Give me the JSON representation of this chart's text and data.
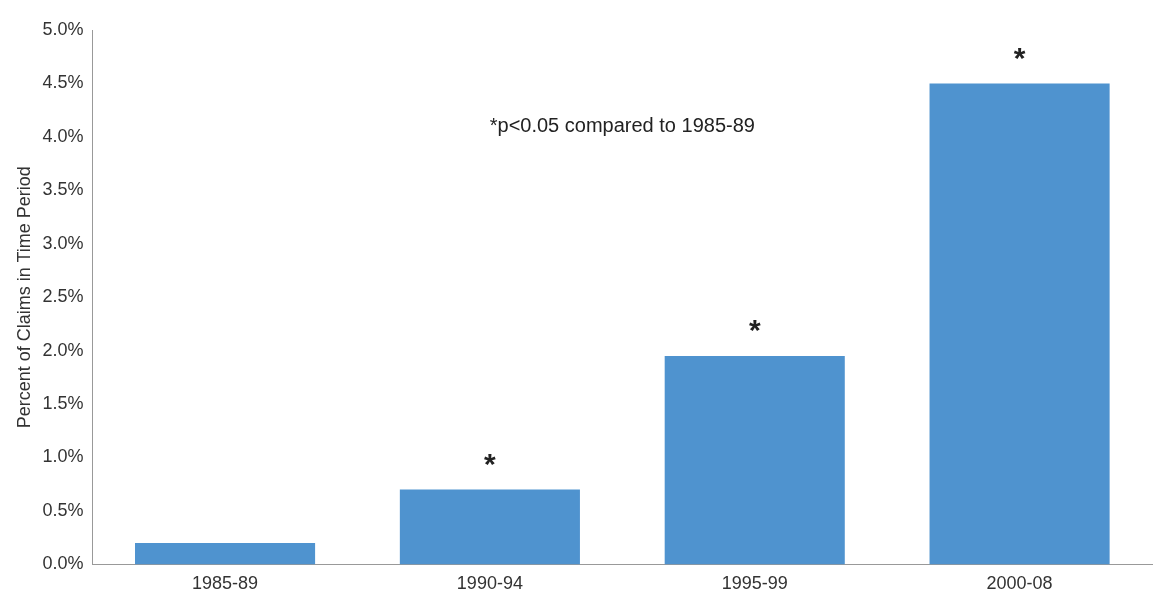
{
  "chart_data": {
    "type": "bar",
    "ylabel": "Percent of Claims in Time Period",
    "categories": [
      "1985-89",
      "1990-94",
      "1995-99",
      "2000-08"
    ],
    "values": [
      0.2,
      0.7,
      1.95,
      4.5
    ],
    "color": "#4f93cf",
    "ylim": [
      0,
      5
    ],
    "yticks": [
      {
        "value": 0,
        "label": "0.0%"
      },
      {
        "value": 0.5,
        "label": "0.5%"
      },
      {
        "value": 1,
        "label": "1.0%"
      },
      {
        "value": 1.5,
        "label": "1.5%"
      },
      {
        "value": 2,
        "label": "2.0%"
      },
      {
        "value": 2.5,
        "label": "2.5%"
      },
      {
        "value": 3,
        "label": "3.0%"
      },
      {
        "value": 3.5,
        "label": "3.5%"
      },
      {
        "value": 4,
        "label": "4.0%"
      },
      {
        "value": 4.5,
        "label": "4.5%"
      },
      {
        "value": 5,
        "label": "5.0%"
      }
    ],
    "grid": false,
    "legend": false,
    "annotations": [
      "*p<0.05 compared to 1985-89",
      {
        "text": "*",
        "x": "1990-94",
        "y": 0.7
      },
      {
        "text": "*",
        "x": "1995-99",
        "y": 1.95
      },
      {
        "text": "*",
        "x": "2000-08",
        "y": 4.5
      }
    ]
  }
}
